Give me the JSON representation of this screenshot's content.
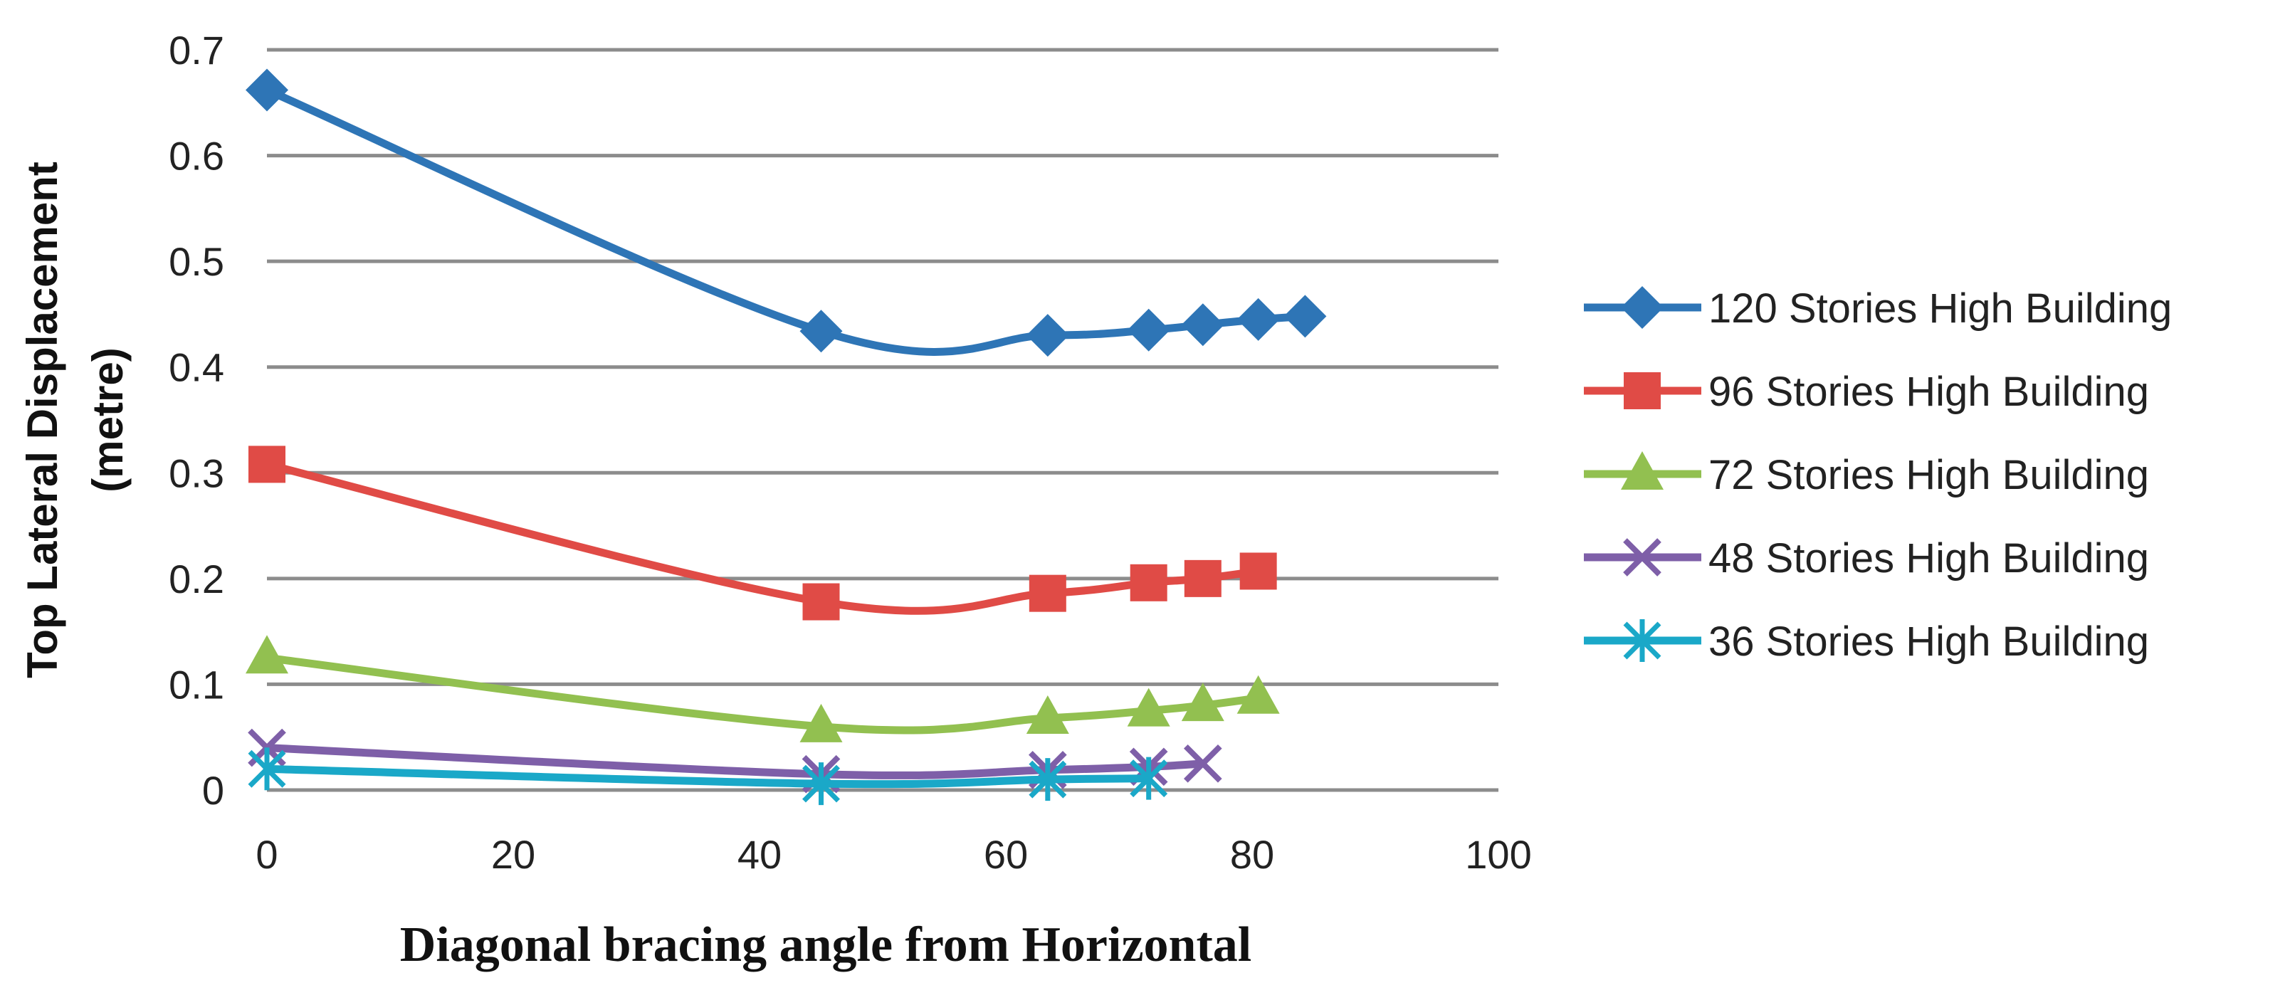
{
  "chart_data": {
    "type": "line",
    "title": "",
    "xlabel": "Diagonal bracing angle from Horizontal",
    "ylabel_lines": [
      "Top Lateral Displacement",
      "(metre)"
    ],
    "xlim": [
      0,
      100
    ],
    "ylim": [
      0,
      0.7
    ],
    "x_ticks": [
      0,
      20,
      40,
      60,
      80,
      100
    ],
    "x_tick_labels": [
      "0",
      "20",
      "40",
      "60",
      "80",
      "100"
    ],
    "y_ticks": [
      0,
      0.1,
      0.2,
      0.3,
      0.4,
      0.5,
      0.6,
      0.7
    ],
    "y_tick_labels": [
      "0",
      "0.1",
      "0.2",
      "0.3",
      "0.4",
      "0.5",
      "0.6",
      "0.7"
    ],
    "grid": "horizontal",
    "legend": "right",
    "series": [
      {
        "name": "120 Stories High Building",
        "color": "#2e75b6",
        "marker": "diamond",
        "x": [
          0,
          45,
          63.4,
          71.6,
          76,
          80.5,
          84.3
        ],
        "y": [
          0.662,
          0.434,
          0.43,
          0.435,
          0.44,
          0.445,
          0.448
        ]
      },
      {
        "name": "96 Stories High Building",
        "color": "#e04b46",
        "marker": "square",
        "x": [
          0,
          45,
          63.4,
          71.6,
          76,
          80.5
        ],
        "y": [
          0.308,
          0.178,
          0.186,
          0.196,
          0.2,
          0.207
        ]
      },
      {
        "name": "72 Stories High Building",
        "color": "#92c050",
        "marker": "triangle",
        "x": [
          0,
          45,
          63.4,
          71.6,
          76,
          80.5
        ],
        "y": [
          0.125,
          0.06,
          0.068,
          0.075,
          0.08,
          0.087
        ]
      },
      {
        "name": "48 Stories High Building",
        "color": "#7e5fa8",
        "marker": "x",
        "x": [
          0,
          45,
          63.4,
          71.6,
          76
        ],
        "y": [
          0.04,
          0.015,
          0.019,
          0.022,
          0.025
        ]
      },
      {
        "name": "36 Stories High Building",
        "color": "#1aa8c8",
        "marker": "star",
        "x": [
          0,
          45,
          63.4,
          71.6
        ],
        "y": [
          0.02,
          0.006,
          0.01,
          0.011
        ]
      }
    ]
  }
}
